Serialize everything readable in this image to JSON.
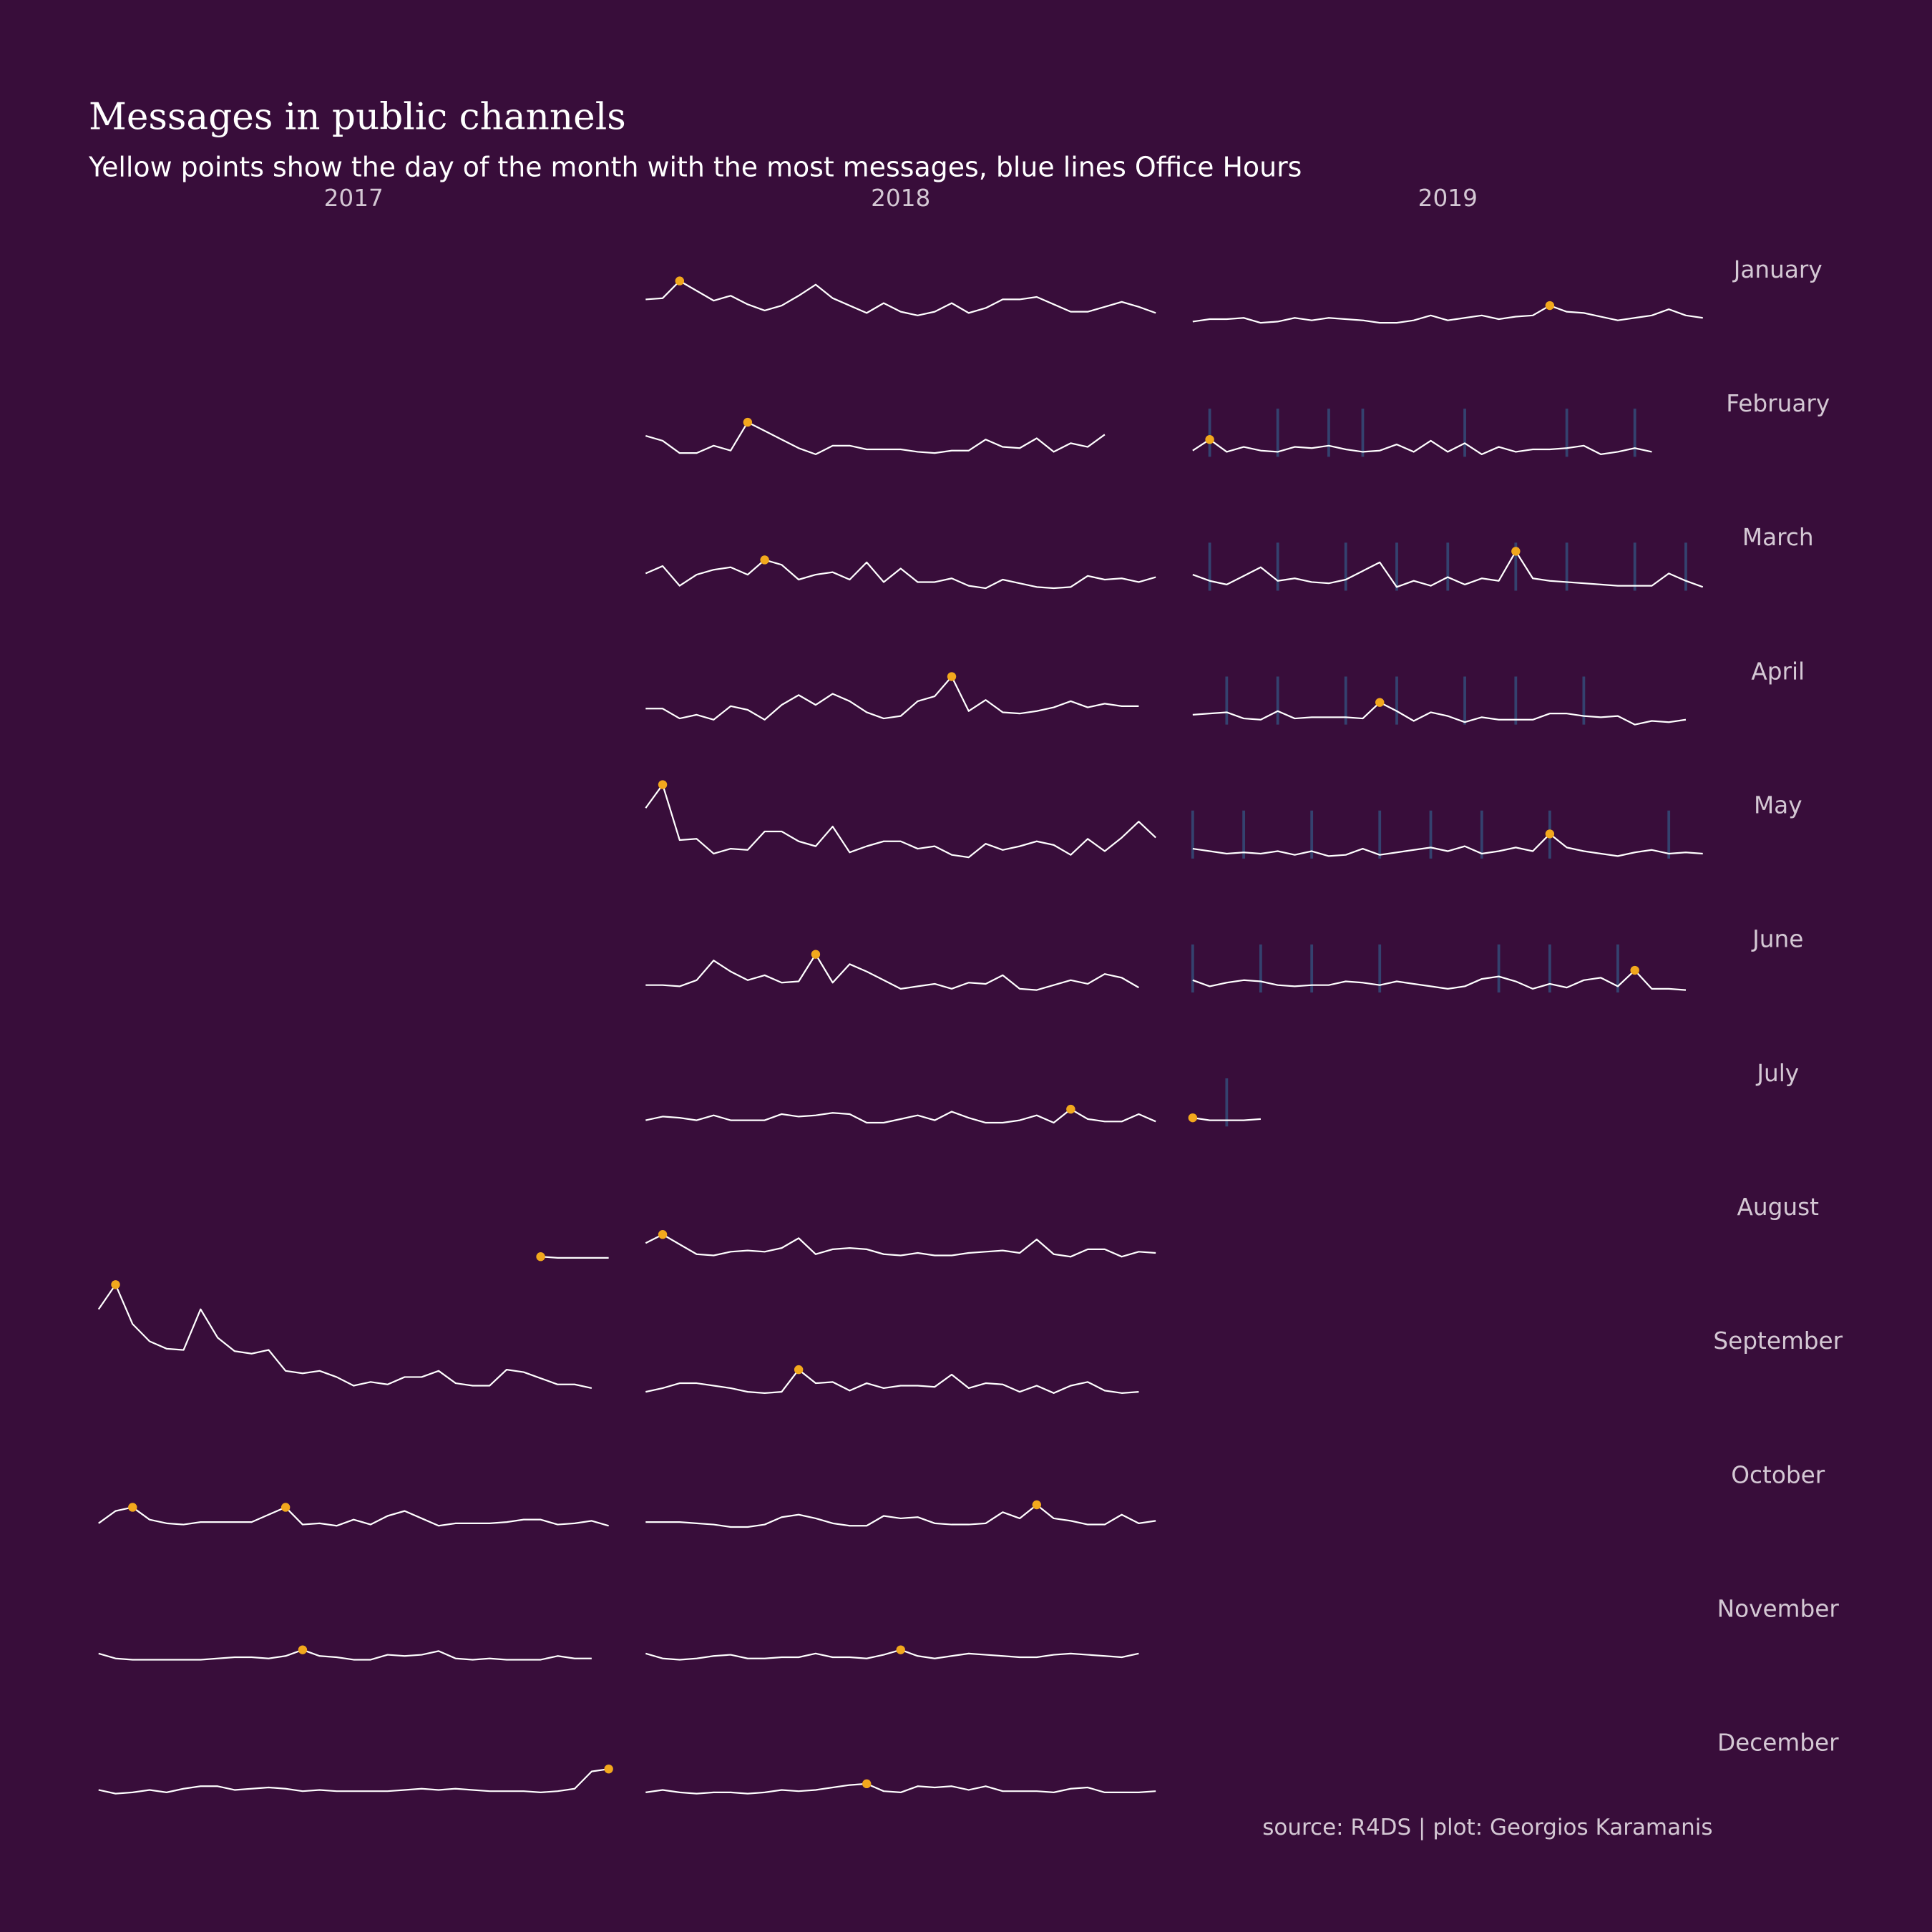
{
  "chart_data": {
    "type": "line",
    "title": "Messages in public channels",
    "subtitle": "Yellow points show the day of the month with the most messages, blue lines Office Hours",
    "caption": "source: R4DS | plot: Georgios Karamanis",
    "months": [
      "January",
      "February",
      "March",
      "April",
      "May",
      "June",
      "July",
      "August",
      "September",
      "October",
      "November",
      "December"
    ],
    "x": [
      1,
      2,
      3,
      4,
      5,
      6,
      7,
      8,
      9,
      10,
      11,
      12,
      13,
      14,
      15,
      16,
      17,
      18,
      19,
      20,
      21,
      22,
      23,
      24,
      25,
      26,
      27,
      28,
      29,
      30,
      31
    ],
    "xlim": [
      1,
      31
    ],
    "ylim": [
      0,
      100
    ],
    "line_color": "#ffffff",
    "max_color": "#f2a81d",
    "office_hours_color": "#34426f",
    "series": [
      {
        "name": "2017",
        "months": [
          null,
          null,
          null,
          null,
          null,
          null,
          null,
          {
            "values": [
              null,
              null,
              null,
              null,
              null,
              null,
              null,
              null,
              null,
              null,
              null,
              null,
              null,
              null,
              null,
              null,
              null,
              null,
              null,
              null,
              null,
              null,
              null,
              null,
              null,
              null,
              11,
              10,
              10,
              10,
              10
            ]
          },
          {
            "values": [
              77,
              97,
              65,
              51,
              45,
              44,
              77,
              54,
              43,
              41,
              44,
              27,
              25,
              27,
              22,
              15,
              18,
              16,
              22,
              22,
              27,
              17,
              15,
              15,
              28,
              26,
              21,
              16,
              16,
              13,
              null
            ]
          },
          {
            "values": [
              12,
              22,
              25,
              15,
              12,
              11,
              13,
              13,
              13,
              13,
              19,
              25,
              11,
              12,
              10,
              15,
              11,
              18,
              22,
              16,
              10,
              12,
              12,
              12,
              13,
              15,
              15,
              11,
              12,
              14,
              10
            ]
          },
          {
            "values": [
              15,
              11,
              10,
              10,
              10,
              10,
              10,
              11,
              12,
              12,
              11,
              13,
              18,
              13,
              12,
              10,
              10,
              14,
              13,
              14,
              17,
              11,
              10,
              11,
              10,
              10,
              10,
              13,
              11,
              11,
              null
            ]
          },
          {
            "values": [
              13,
              10,
              11,
              13,
              11,
              14,
              16,
              16,
              13,
              14,
              15,
              14,
              12,
              13,
              12,
              12,
              12,
              12,
              13,
              14,
              13,
              14,
              13,
              12,
              12,
              12,
              11,
              12,
              14,
              28,
              30
            ]
          }
        ]
      },
      {
        "name": "2018",
        "months": [
          {
            "values": [
              27,
              28,
              42,
              34,
              26,
              30,
              23,
              18,
              22,
              30,
              39,
              28,
              22,
              16,
              24,
              17,
              14,
              17,
              24,
              16,
              20,
              27,
              27,
              29,
              23,
              17,
              17,
              21,
              25,
              21,
              16
            ]
          },
          {
            "values": [
              25,
              21,
              11,
              11,
              17,
              13,
              36,
              29,
              22,
              15,
              10,
              17,
              17,
              14,
              14,
              14,
              12,
              11,
              13,
              13,
              22,
              16,
              15,
              23,
              12,
              19,
              16,
              26,
              null,
              null,
              null
            ]
          },
          {
            "values": [
              22,
              28,
              12,
              21,
              25,
              27,
              21,
              33,
              29,
              17,
              21,
              23,
              17,
              31,
              15,
              26,
              15,
              15,
              18,
              12,
              10,
              17,
              14,
              11,
              10,
              11,
              20,
              17,
              18,
              15,
              19
            ]
          },
          {
            "values": [
              21,
              21,
              13,
              16,
              12,
              23,
              20,
              12,
              24,
              32,
              24,
              33,
              27,
              18,
              13,
              15,
              27,
              31,
              47,
              19,
              28,
              18,
              17,
              19,
              22,
              27,
              22,
              25,
              23,
              23,
              null
            ]
          },
          {
            "values": [
              49,
              68,
              23,
              24,
              12,
              16,
              15,
              30,
              30,
              22,
              18,
              34,
              13,
              18,
              22,
              22,
              16,
              18,
              11,
              9,
              20,
              15,
              18,
              22,
              19,
              11,
              24,
              14,
              25,
              38,
              25
            ]
          },
          {
            "values": [
              14,
              14,
              13,
              18,
              34,
              25,
              18,
              22,
              16,
              17,
              39,
              16,
              31,
              25,
              18,
              11,
              13,
              15,
              11,
              16,
              15,
              22,
              11,
              10,
              14,
              18,
              15,
              23,
              20,
              12,
              null
            ]
          },
          {
            "values": [
              13,
              16,
              15,
              13,
              17,
              13,
              13,
              13,
              18,
              16,
              17,
              19,
              18,
              11,
              11,
              14,
              17,
              13,
              20,
              15,
              11,
              11,
              13,
              17,
              11,
              22,
              14,
              12,
              12,
              18,
              12
            ]
          },
          {
            "values": [
              22,
              29,
              21,
              13,
              12,
              15,
              16,
              15,
              18,
              26,
              13,
              17,
              18,
              17,
              13,
              12,
              14,
              12,
              12,
              14,
              15,
              16,
              14,
              25,
              13,
              11,
              17,
              17,
              11,
              15,
              14
            ]
          },
          {
            "values": [
              10,
              13,
              17,
              17,
              15,
              13,
              10,
              9,
              10,
              28,
              17,
              18,
              11,
              17,
              13,
              15,
              15,
              14,
              24,
              13,
              17,
              16,
              10,
              15,
              9,
              15,
              18,
              11,
              9,
              10,
              null
            ]
          },
          {
            "values": [
              13,
              13,
              13,
              12,
              11,
              9,
              9,
              11,
              17,
              19,
              16,
              12,
              10,
              10,
              18,
              16,
              17,
              12,
              11,
              11,
              12,
              21,
              16,
              27,
              16,
              14,
              11,
              11,
              19,
              12,
              14
            ]
          },
          {
            "values": [
              15,
              11,
              10,
              11,
              13,
              14,
              11,
              11,
              12,
              12,
              15,
              12,
              12,
              11,
              14,
              18,
              13,
              11,
              13,
              15,
              14,
              13,
              12,
              12,
              14,
              15,
              14,
              13,
              12,
              15,
              null
            ]
          },
          {
            "values": [
              11,
              13,
              11,
              10,
              11,
              11,
              10,
              11,
              13,
              12,
              13,
              15,
              17,
              18,
              12,
              11,
              16,
              15,
              16,
              13,
              16,
              12,
              12,
              12,
              11,
              14,
              15,
              11,
              11,
              11,
              12
            ]
          }
        ]
      },
      {
        "name": "2019",
        "months": [
          {
            "values": [
              9,
              11,
              11,
              12,
              8,
              9,
              12,
              10,
              12,
              11,
              10,
              8,
              8,
              10,
              14,
              10,
              12,
              14,
              11,
              13,
              14,
              22,
              17,
              16,
              13,
              10,
              12,
              14,
              19,
              14,
              12
            ],
            "office_hours": []
          },
          {
            "values": [
              13,
              22,
              12,
              16,
              13,
              12,
              16,
              15,
              17,
              14,
              12,
              13,
              18,
              12,
              21,
              12,
              19,
              10,
              16,
              12,
              14,
              14,
              15,
              17,
              10,
              12,
              15,
              12,
              null,
              null,
              null
            ],
            "office_hours": [
              2,
              6,
              9,
              11,
              17,
              23,
              27
            ]
          },
          {
            "values": [
              21,
              16,
              13,
              20,
              27,
              16,
              18,
              15,
              14,
              17,
              24,
              31,
              11,
              16,
              12,
              19,
              13,
              18,
              16,
              40,
              18,
              16,
              15,
              14,
              13,
              12,
              12,
              12,
              22,
              16,
              11
            ],
            "office_hours": [
              2,
              6,
              10,
              13,
              16,
              20,
              23,
              27,
              30
            ]
          },
          {
            "values": [
              16,
              17,
              18,
              13,
              12,
              19,
              13,
              14,
              14,
              14,
              13,
              26,
              19,
              11,
              18,
              15,
              10,
              14,
              12,
              12,
              12,
              17,
              17,
              15,
              14,
              15,
              8,
              11,
              10,
              12,
              null
            ],
            "office_hours": [
              3,
              6,
              10,
              13,
              17,
              20,
              24
            ]
          },
          {
            "values": [
              16,
              14,
              12,
              13,
              12,
              14,
              11,
              14,
              10,
              11,
              16,
              11,
              13,
              15,
              17,
              14,
              18,
              12,
              14,
              17,
              14,
              28,
              17,
              14,
              12,
              10,
              13,
              15,
              12,
              13,
              12
            ],
            "office_hours": [
              1,
              4,
              8,
              12,
              15,
              18,
              22,
              29
            ]
          },
          {
            "values": [
              18,
              13,
              16,
              18,
              17,
              14,
              13,
              14,
              14,
              17,
              16,
              14,
              17,
              15,
              13,
              11,
              13,
              19,
              21,
              17,
              11,
              15,
              12,
              18,
              20,
              13,
              26,
              11,
              11,
              10,
              null
            ],
            "office_hours": [
              1,
              5,
              8,
              12,
              19,
              22,
              26
            ]
          },
          {
            "values": [
              15,
              13,
              13,
              13,
              14,
              null,
              null,
              null,
              null,
              null,
              null,
              null,
              null,
              null,
              null,
              null,
              null,
              null,
              null,
              null,
              null,
              null,
              null,
              null,
              null,
              null,
              null,
              null,
              null,
              null,
              null
            ],
            "office_hours": [
              3
            ]
          },
          null,
          null,
          null,
          null,
          null
        ]
      }
    ]
  }
}
